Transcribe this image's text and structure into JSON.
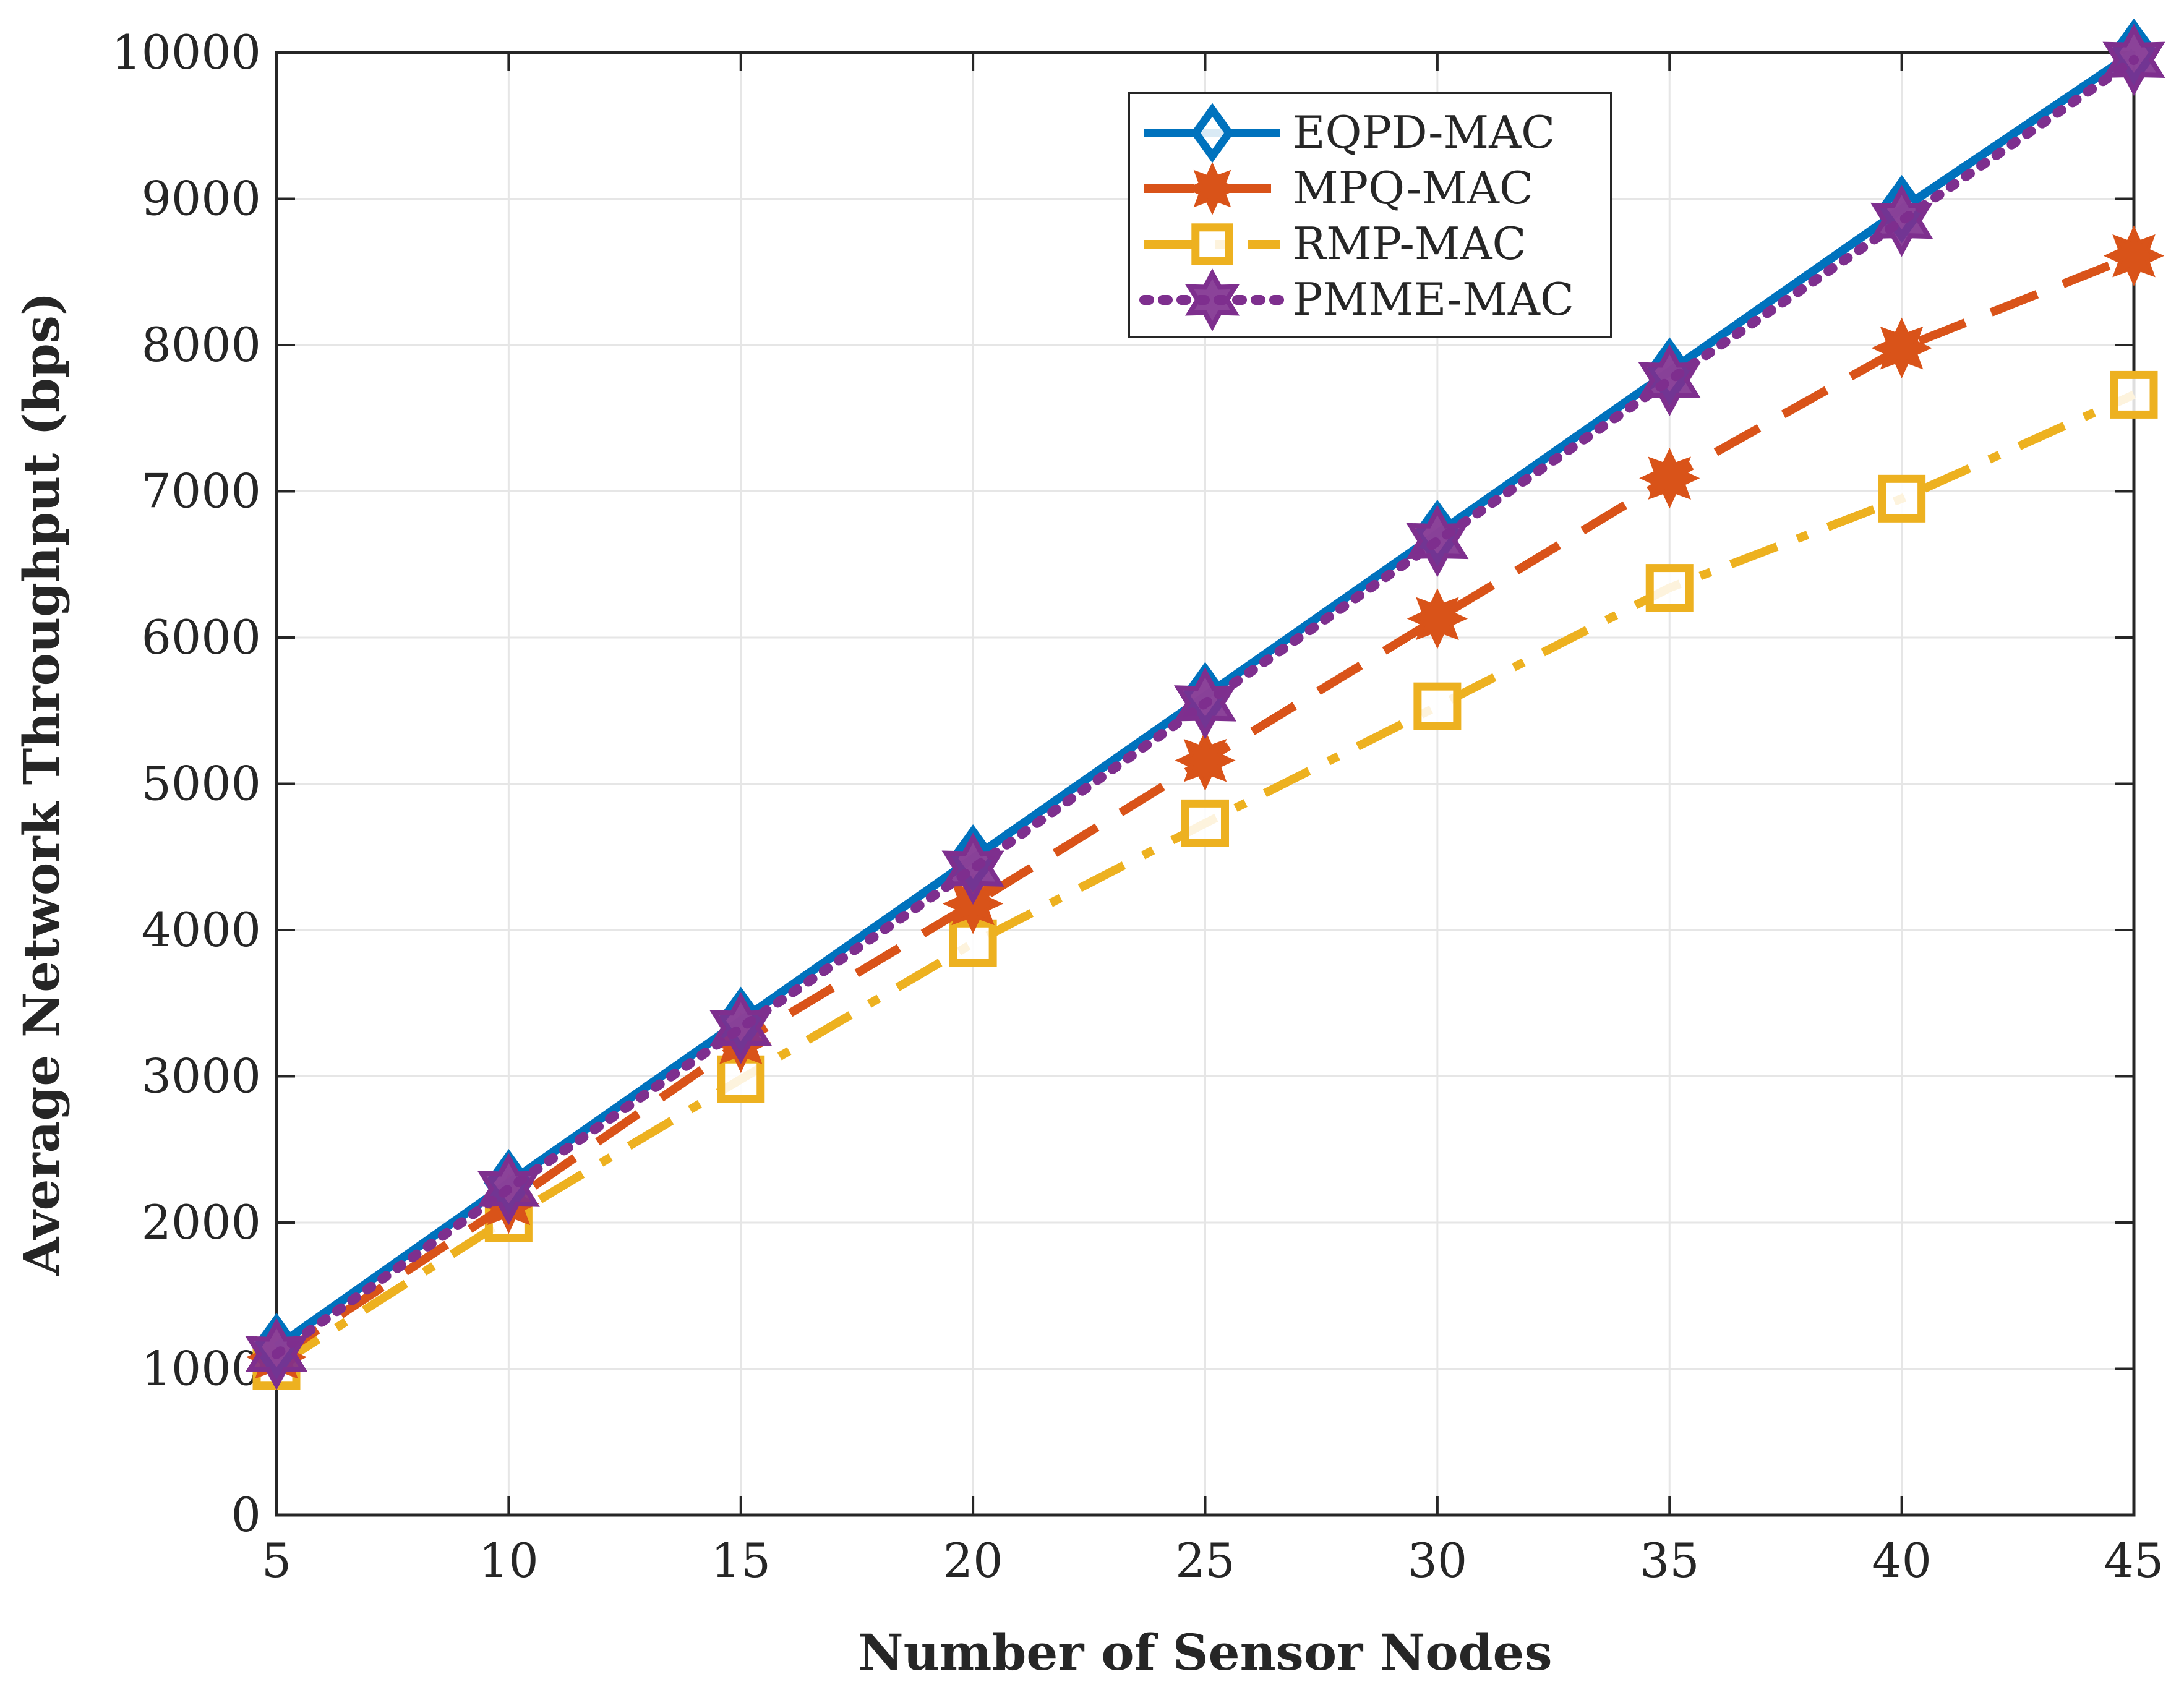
{
  "chart_data": {
    "type": "line",
    "title": "",
    "xlabel": "Number of Sensor Nodes",
    "ylabel": "Average Network Throughput (bps)",
    "xlim": [
      5,
      45
    ],
    "ylim": [
      0,
      10000
    ],
    "x": [
      5,
      10,
      15,
      20,
      25,
      30,
      35,
      40,
      45
    ],
    "xticks": [
      5,
      10,
      15,
      20,
      25,
      30,
      35,
      40,
      45
    ],
    "yticks": [
      0,
      1000,
      2000,
      3000,
      4000,
      5000,
      6000,
      7000,
      8000,
      9000,
      10000
    ],
    "grid": true,
    "legend_position": "top-center",
    "series": [
      {
        "name": "EQPD-MAC",
        "color": "#0072BD",
        "line": "solid",
        "marker": "diamond",
        "values": [
          1150,
          2270,
          3380,
          4490,
          5600,
          6710,
          7820,
          8930,
          10000
        ]
      },
      {
        "name": "MPQ-MAC",
        "color": "#D95319",
        "line": "dashed",
        "marker": "asterisk",
        "values": [
          1080,
          2130,
          3230,
          4180,
          5160,
          6130,
          7090,
          7980,
          8610
        ]
      },
      {
        "name": "RMP-MAC",
        "color": "#EDB120",
        "line": "dashdot",
        "marker": "square",
        "values": [
          1020,
          2030,
          2980,
          3910,
          4730,
          5530,
          6340,
          6950,
          7660
        ]
      },
      {
        "name": "PMME-MAC",
        "color": "#7E2F8E",
        "line": "dotted",
        "marker": "hexagram",
        "values": [
          1100,
          2230,
          3330,
          4420,
          5550,
          6660,
          7760,
          8850,
          9950
        ]
      }
    ]
  }
}
